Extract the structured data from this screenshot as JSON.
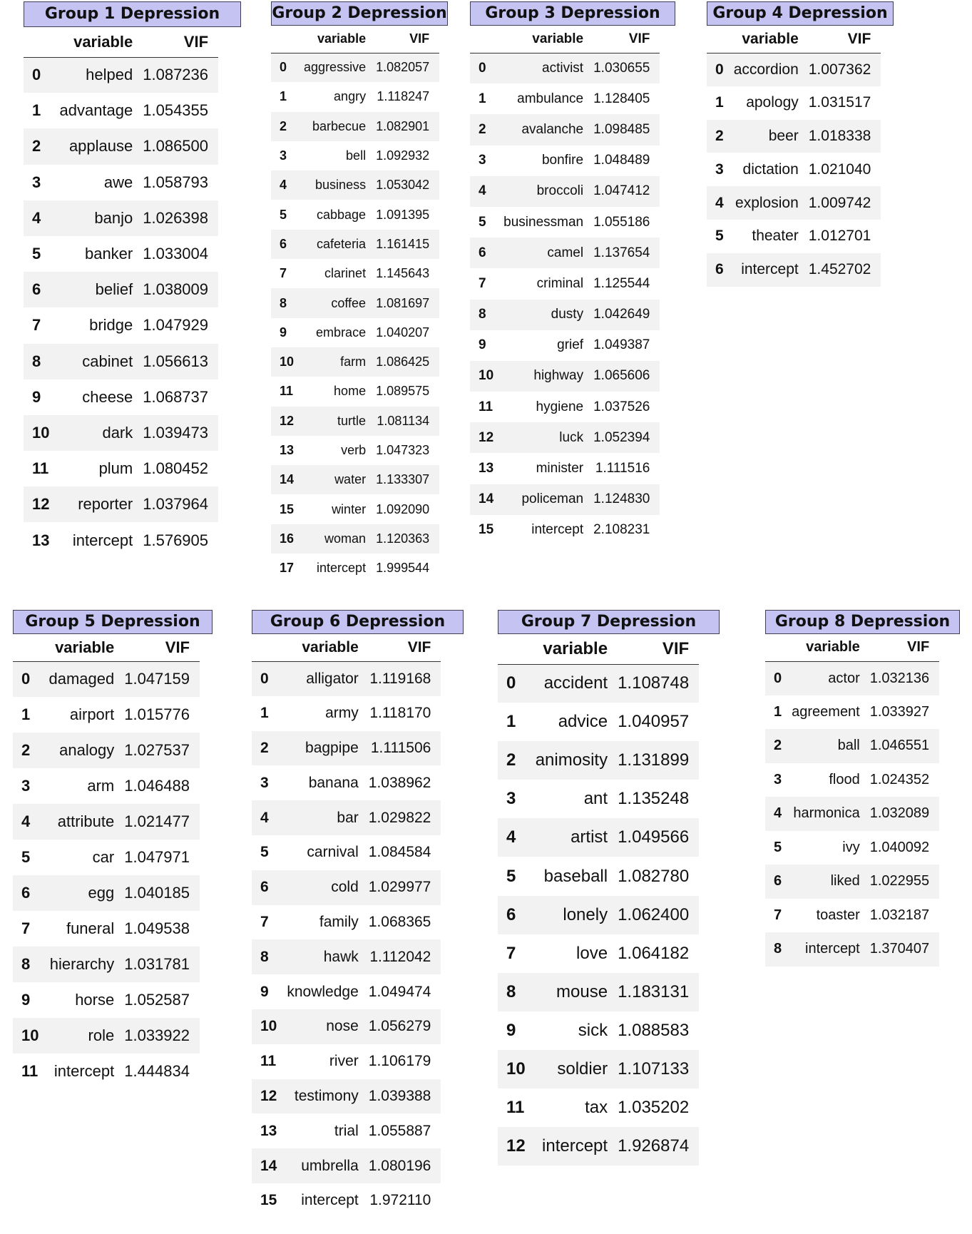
{
  "groups": [
    {
      "title": "Group 1 Depression",
      "columns": {
        "variable": "variable",
        "vif": "VIF"
      },
      "rows": [
        {
          "idx": "0",
          "var": "helped",
          "vif": "1.087236"
        },
        {
          "idx": "1",
          "var": "advantage",
          "vif": "1.054355"
        },
        {
          "idx": "2",
          "var": "applause",
          "vif": "1.086500"
        },
        {
          "idx": "3",
          "var": "awe",
          "vif": "1.058793"
        },
        {
          "idx": "4",
          "var": "banjo",
          "vif": "1.026398"
        },
        {
          "idx": "5",
          "var": "banker",
          "vif": "1.033004"
        },
        {
          "idx": "6",
          "var": "belief",
          "vif": "1.038009"
        },
        {
          "idx": "7",
          "var": "bridge",
          "vif": "1.047929"
        },
        {
          "idx": "8",
          "var": "cabinet",
          "vif": "1.056613"
        },
        {
          "idx": "9",
          "var": "cheese",
          "vif": "1.068737"
        },
        {
          "idx": "10",
          "var": "dark",
          "vif": "1.039473"
        },
        {
          "idx": "11",
          "var": "plum",
          "vif": "1.080452"
        },
        {
          "idx": "12",
          "var": "reporter",
          "vif": "1.037964"
        },
        {
          "idx": "13",
          "var": "intercept",
          "vif": "1.576905"
        }
      ]
    },
    {
      "title": "Group 2 Depression",
      "columns": {
        "variable": "variable",
        "vif": "VIF"
      },
      "rows": [
        {
          "idx": "0",
          "var": "aggressive",
          "vif": "1.082057"
        },
        {
          "idx": "1",
          "var": "angry",
          "vif": "1.118247"
        },
        {
          "idx": "2",
          "var": "barbecue",
          "vif": "1.082901"
        },
        {
          "idx": "3",
          "var": "bell",
          "vif": "1.092932"
        },
        {
          "idx": "4",
          "var": "business",
          "vif": "1.053042"
        },
        {
          "idx": "5",
          "var": "cabbage",
          "vif": "1.091395"
        },
        {
          "idx": "6",
          "var": "cafeteria",
          "vif": "1.161415"
        },
        {
          "idx": "7",
          "var": "clarinet",
          "vif": "1.145643"
        },
        {
          "idx": "8",
          "var": "coffee",
          "vif": "1.081697"
        },
        {
          "idx": "9",
          "var": "embrace",
          "vif": "1.040207"
        },
        {
          "idx": "10",
          "var": "farm",
          "vif": "1.086425"
        },
        {
          "idx": "11",
          "var": "home",
          "vif": "1.089575"
        },
        {
          "idx": "12",
          "var": "turtle",
          "vif": "1.081134"
        },
        {
          "idx": "13",
          "var": "verb",
          "vif": "1.047323"
        },
        {
          "idx": "14",
          "var": "water",
          "vif": "1.133307"
        },
        {
          "idx": "15",
          "var": "winter",
          "vif": "1.092090"
        },
        {
          "idx": "16",
          "var": "woman",
          "vif": "1.120363"
        },
        {
          "idx": "17",
          "var": "intercept",
          "vif": "1.999544"
        }
      ]
    },
    {
      "title": "Group 3 Depression",
      "columns": {
        "variable": "variable",
        "vif": "VIF"
      },
      "rows": [
        {
          "idx": "0",
          "var": "activist",
          "vif": "1.030655"
        },
        {
          "idx": "1",
          "var": "ambulance",
          "vif": "1.128405"
        },
        {
          "idx": "2",
          "var": "avalanche",
          "vif": "1.098485"
        },
        {
          "idx": "3",
          "var": "bonfire",
          "vif": "1.048489"
        },
        {
          "idx": "4",
          "var": "broccoli",
          "vif": "1.047412"
        },
        {
          "idx": "5",
          "var": "businessman",
          "vif": "1.055186"
        },
        {
          "idx": "6",
          "var": "camel",
          "vif": "1.137654"
        },
        {
          "idx": "7",
          "var": "criminal",
          "vif": "1.125544"
        },
        {
          "idx": "8",
          "var": "dusty",
          "vif": "1.042649"
        },
        {
          "idx": "9",
          "var": "grief",
          "vif": "1.049387"
        },
        {
          "idx": "10",
          "var": "highway",
          "vif": "1.065606"
        },
        {
          "idx": "11",
          "var": "hygiene",
          "vif": "1.037526"
        },
        {
          "idx": "12",
          "var": "luck",
          "vif": "1.052394"
        },
        {
          "idx": "13",
          "var": "minister",
          "vif": "1.111516"
        },
        {
          "idx": "14",
          "var": "policeman",
          "vif": "1.124830"
        },
        {
          "idx": "15",
          "var": "intercept",
          "vif": "2.108231"
        }
      ]
    },
    {
      "title": "Group 4 Depression",
      "columns": {
        "variable": "variable",
        "vif": "VIF"
      },
      "rows": [
        {
          "idx": "0",
          "var": "accordion",
          "vif": "1.007362"
        },
        {
          "idx": "1",
          "var": "apology",
          "vif": "1.031517"
        },
        {
          "idx": "2",
          "var": "beer",
          "vif": "1.018338"
        },
        {
          "idx": "3",
          "var": "dictation",
          "vif": "1.021040"
        },
        {
          "idx": "4",
          "var": "explosion",
          "vif": "1.009742"
        },
        {
          "idx": "5",
          "var": "theater",
          "vif": "1.012701"
        },
        {
          "idx": "6",
          "var": "intercept",
          "vif": "1.452702"
        }
      ]
    },
    {
      "title": "Group 5 Depression",
      "columns": {
        "variable": "variable",
        "vif": "VIF"
      },
      "rows": [
        {
          "idx": "0",
          "var": "damaged",
          "vif": "1.047159"
        },
        {
          "idx": "1",
          "var": "airport",
          "vif": "1.015776"
        },
        {
          "idx": "2",
          "var": "analogy",
          "vif": "1.027537"
        },
        {
          "idx": "3",
          "var": "arm",
          "vif": "1.046488"
        },
        {
          "idx": "4",
          "var": "attribute",
          "vif": "1.021477"
        },
        {
          "idx": "5",
          "var": "car",
          "vif": "1.047971"
        },
        {
          "idx": "6",
          "var": "egg",
          "vif": "1.040185"
        },
        {
          "idx": "7",
          "var": "funeral",
          "vif": "1.049538"
        },
        {
          "idx": "8",
          "var": "hierarchy",
          "vif": "1.031781"
        },
        {
          "idx": "9",
          "var": "horse",
          "vif": "1.052587"
        },
        {
          "idx": "10",
          "var": "role",
          "vif": "1.033922"
        },
        {
          "idx": "11",
          "var": "intercept",
          "vif": "1.444834"
        }
      ]
    },
    {
      "title": "Group 6 Depression",
      "columns": {
        "variable": "variable",
        "vif": "VIF"
      },
      "rows": [
        {
          "idx": "0",
          "var": "alligator",
          "vif": "1.119168"
        },
        {
          "idx": "1",
          "var": "army",
          "vif": "1.118170"
        },
        {
          "idx": "2",
          "var": "bagpipe",
          "vif": "1.111506"
        },
        {
          "idx": "3",
          "var": "banana",
          "vif": "1.038962"
        },
        {
          "idx": "4",
          "var": "bar",
          "vif": "1.029822"
        },
        {
          "idx": "5",
          "var": "carnival",
          "vif": "1.084584"
        },
        {
          "idx": "6",
          "var": "cold",
          "vif": "1.029977"
        },
        {
          "idx": "7",
          "var": "family",
          "vif": "1.068365"
        },
        {
          "idx": "8",
          "var": "hawk",
          "vif": "1.112042"
        },
        {
          "idx": "9",
          "var": "knowledge",
          "vif": "1.049474"
        },
        {
          "idx": "10",
          "var": "nose",
          "vif": "1.056279"
        },
        {
          "idx": "11",
          "var": "river",
          "vif": "1.106179"
        },
        {
          "idx": "12",
          "var": "testimony",
          "vif": "1.039388"
        },
        {
          "idx": "13",
          "var": "trial",
          "vif": "1.055887"
        },
        {
          "idx": "14",
          "var": "umbrella",
          "vif": "1.080196"
        },
        {
          "idx": "15",
          "var": "intercept",
          "vif": "1.972110"
        }
      ]
    },
    {
      "title": "Group 7 Depression",
      "columns": {
        "variable": "variable",
        "vif": "VIF"
      },
      "rows": [
        {
          "idx": "0",
          "var": "accident",
          "vif": "1.108748"
        },
        {
          "idx": "1",
          "var": "advice",
          "vif": "1.040957"
        },
        {
          "idx": "2",
          "var": "animosity",
          "vif": "1.131899"
        },
        {
          "idx": "3",
          "var": "ant",
          "vif": "1.135248"
        },
        {
          "idx": "4",
          "var": "artist",
          "vif": "1.049566"
        },
        {
          "idx": "5",
          "var": "baseball",
          "vif": "1.082780"
        },
        {
          "idx": "6",
          "var": "lonely",
          "vif": "1.062400"
        },
        {
          "idx": "7",
          "var": "love",
          "vif": "1.064182"
        },
        {
          "idx": "8",
          "var": "mouse",
          "vif": "1.183131"
        },
        {
          "idx": "9",
          "var": "sick",
          "vif": "1.088583"
        },
        {
          "idx": "10",
          "var": "soldier",
          "vif": "1.107133"
        },
        {
          "idx": "11",
          "var": "tax",
          "vif": "1.035202"
        },
        {
          "idx": "12",
          "var": "intercept",
          "vif": "1.926874"
        }
      ]
    },
    {
      "title": "Group 8 Depression",
      "columns": {
        "variable": "variable",
        "vif": "VIF"
      },
      "rows": [
        {
          "idx": "0",
          "var": "actor",
          "vif": "1.032136"
        },
        {
          "idx": "1",
          "var": "agreement",
          "vif": "1.033927"
        },
        {
          "idx": "2",
          "var": "ball",
          "vif": "1.046551"
        },
        {
          "idx": "3",
          "var": "flood",
          "vif": "1.024352"
        },
        {
          "idx": "4",
          "var": "harmonica",
          "vif": "1.032089"
        },
        {
          "idx": "5",
          "var": "ivy",
          "vif": "1.040092"
        },
        {
          "idx": "6",
          "var": "liked",
          "vif": "1.022955"
        },
        {
          "idx": "7",
          "var": "toaster",
          "vif": "1.032187"
        },
        {
          "idx": "8",
          "var": "intercept",
          "vif": "1.370407"
        }
      ]
    }
  ]
}
